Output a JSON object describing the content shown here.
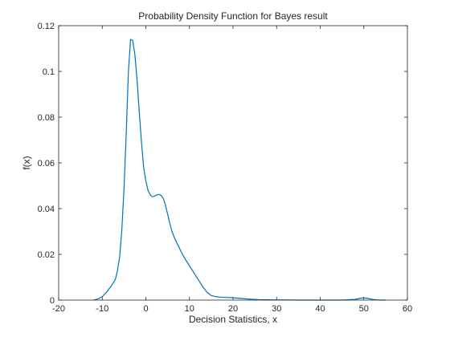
{
  "chart_data": {
    "type": "line",
    "title": "Probability Density Function for Bayes result",
    "xlabel": "Decision Statistics, x",
    "ylabel": "f(x)",
    "xlim": [
      -20,
      60
    ],
    "ylim": [
      0,
      0.12
    ],
    "xticks": [
      -20,
      -10,
      0,
      10,
      20,
      30,
      40,
      50,
      60
    ],
    "xtick_labels": [
      "-20",
      "-10",
      "0",
      "10",
      "20",
      "30",
      "40",
      "50",
      "60"
    ],
    "yticks": [
      0,
      0.02,
      0.04,
      0.06,
      0.08,
      0.1,
      0.12
    ],
    "ytick_labels": [
      "0",
      "0.02",
      "0.04",
      "0.06",
      "0.08",
      "0.1",
      "0.12"
    ],
    "grid": false,
    "line_color": "#0072BD",
    "series": [
      {
        "x": [
          -12,
          -11,
          -10,
          -9,
          -8,
          -7,
          -6.5,
          -6,
          -5.5,
          -5,
          -4.5,
          -4,
          -3.5,
          -3,
          -2.5,
          -2,
          -1.5,
          -1,
          -0.5,
          0,
          0.5,
          1,
          1.5,
          2,
          2.5,
          3,
          3.5,
          4,
          4.5,
          5,
          5.5,
          6,
          6.5,
          7,
          8,
          9,
          10,
          11,
          12,
          13,
          14,
          15,
          16,
          17,
          18,
          20,
          22,
          24,
          26,
          30,
          35,
          40,
          45,
          48,
          49,
          50,
          51,
          52,
          53,
          54,
          55
        ],
        "y": [
          0,
          0.0005,
          0.0015,
          0.0035,
          0.006,
          0.009,
          0.013,
          0.019,
          0.031,
          0.049,
          0.073,
          0.1,
          0.114,
          0.1135,
          0.107,
          0.096,
          0.082,
          0.069,
          0.058,
          0.052,
          0.048,
          0.046,
          0.0452,
          0.0455,
          0.046,
          0.0462,
          0.0458,
          0.0445,
          0.0415,
          0.0375,
          0.0335,
          0.03,
          0.0275,
          0.0255,
          0.0215,
          0.018,
          0.015,
          0.012,
          0.009,
          0.006,
          0.0035,
          0.002,
          0.0015,
          0.0013,
          0.0012,
          0.001,
          0.0007,
          0.0004,
          0.0002,
          0.0001,
          0,
          0,
          0,
          0.0003,
          0.0007,
          0.001,
          0.0007,
          0.0003,
          0.0001,
          0,
          0
        ]
      }
    ]
  }
}
